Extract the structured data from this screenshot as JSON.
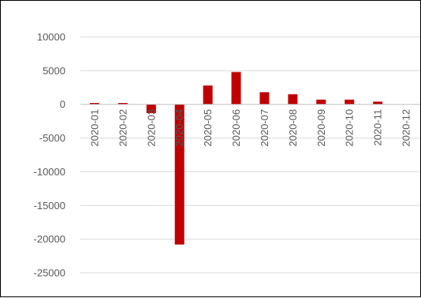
{
  "chart_data": {
    "type": "bar",
    "title": "",
    "xlabel": "",
    "ylabel": "",
    "categories": [
      "2020-01",
      "2020-02",
      "2020-03",
      "2020-04",
      "2020-05",
      "2020-06",
      "2020-07",
      "2020-08",
      "2020-09",
      "2020-10",
      "2020-11",
      "2020-12"
    ],
    "values": [
      200,
      200,
      -1300,
      -20800,
      2800,
      4800,
      1800,
      1500,
      700,
      700,
      400,
      0
    ],
    "ylim": [
      -25000,
      10000
    ],
    "yticks": [
      "10000",
      "5000",
      "0",
      "-5000",
      "-10000",
      "-15000",
      "-20000",
      "-25000"
    ],
    "grid": true,
    "legend": "none",
    "bar_color": "#c00000",
    "grid_color": "#d9d9d9",
    "axis_color": "#bfbfbf"
  }
}
